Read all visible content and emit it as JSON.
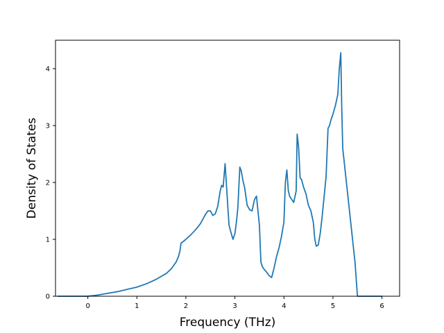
{
  "chart_data": {
    "type": "line",
    "title": "",
    "xlabel": "Frequency (THz)",
    "ylabel": "Density of States",
    "xlim": [
      -0.66,
      6.36
    ],
    "ylim": [
      0,
      4.5
    ],
    "xticks": [
      0,
      1,
      2,
      3,
      4,
      5,
      6
    ],
    "yticks": [
      0,
      1,
      2,
      3,
      4
    ],
    "grid": false,
    "legend": "none",
    "series": [
      {
        "color": "#1f77b4",
        "x": [
          -0.62,
          0.0,
          0.2,
          0.4,
          0.6,
          0.8,
          1.0,
          1.2,
          1.4,
          1.6,
          1.7,
          1.8,
          1.85,
          1.88,
          1.9,
          2.0,
          2.1,
          2.2,
          2.3,
          2.35,
          2.4,
          2.45,
          2.5,
          2.55,
          2.6,
          2.65,
          2.7,
          2.73,
          2.76,
          2.8,
          2.85,
          2.88,
          2.92,
          2.96,
          3.0,
          3.03,
          3.06,
          3.1,
          3.13,
          3.16,
          3.2,
          3.25,
          3.3,
          3.35,
          3.4,
          3.44,
          3.47,
          3.5,
          3.53,
          3.56,
          3.6,
          3.65,
          3.7,
          3.75,
          3.8,
          3.85,
          3.9,
          3.95,
          4.0,
          4.03,
          4.06,
          4.09,
          4.12,
          4.16,
          4.2,
          4.25,
          4.27,
          4.3,
          4.33,
          4.36,
          4.4,
          4.45,
          4.5,
          4.55,
          4.6,
          4.63,
          4.66,
          4.7,
          4.74,
          4.78,
          4.82,
          4.86,
          4.9,
          4.93,
          4.96,
          5.0,
          5.05,
          5.1,
          5.13,
          5.16,
          5.18,
          5.2,
          5.25,
          5.3,
          5.35,
          5.4,
          5.45,
          5.5,
          6.0
        ],
        "y": [
          0,
          0,
          0.02,
          0.05,
          0.08,
          0.12,
          0.16,
          0.22,
          0.3,
          0.4,
          0.48,
          0.6,
          0.7,
          0.8,
          0.93,
          1.0,
          1.08,
          1.17,
          1.28,
          1.36,
          1.44,
          1.5,
          1.5,
          1.42,
          1.45,
          1.58,
          1.85,
          1.95,
          1.92,
          2.33,
          1.65,
          1.25,
          1.12,
          1.0,
          1.1,
          1.3,
          1.55,
          2.27,
          2.2,
          2.05,
          1.9,
          1.6,
          1.52,
          1.5,
          1.7,
          1.76,
          1.5,
          1.25,
          0.6,
          0.52,
          0.47,
          0.42,
          0.36,
          0.33,
          0.5,
          0.7,
          0.85,
          1.05,
          1.3,
          2.0,
          2.22,
          1.85,
          1.75,
          1.7,
          1.65,
          1.85,
          2.85,
          2.62,
          2.08,
          2.05,
          1.92,
          1.8,
          1.6,
          1.5,
          1.3,
          1.0,
          0.88,
          0.9,
          1.1,
          1.4,
          1.75,
          2.1,
          2.95,
          3.0,
          3.1,
          3.2,
          3.35,
          3.55,
          4.0,
          4.28,
          3.3,
          2.6,
          2.2,
          1.8,
          1.4,
          1.0,
          0.6,
          0,
          0
        ]
      }
    ]
  }
}
